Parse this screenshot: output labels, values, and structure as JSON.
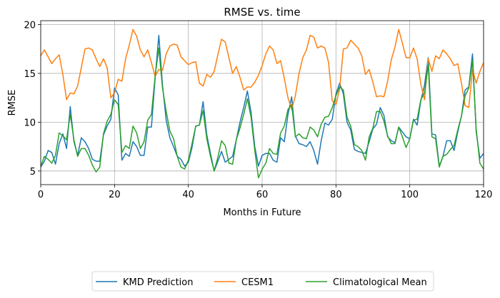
{
  "chart_data": {
    "type": "line",
    "title": "RMSE vs. time",
    "xlabel": "Months in Future",
    "ylabel": "RMSE",
    "xlim": [
      0,
      120
    ],
    "ylim": [
      3.6,
      20.4
    ],
    "xticks": [
      0,
      20,
      40,
      60,
      80,
      100,
      120
    ],
    "yticks": [
      5,
      10,
      15,
      20
    ],
    "grid": true,
    "legend_position": "bottom-center",
    "series": [
      {
        "name": "KMD Prediction",
        "color": "#1f77b4",
        "values": [
          5.4,
          6.0,
          7.1,
          6.9,
          5.7,
          7.8,
          8.8,
          7.3,
          11.6,
          8.0,
          6.6,
          8.4,
          8.0,
          7.3,
          6.2,
          6.0,
          6.0,
          8.7,
          9.6,
          10.3,
          13.5,
          12.8,
          6.1,
          6.8,
          6.5,
          8.0,
          7.5,
          6.6,
          6.6,
          9.5,
          9.5,
          14.5,
          18.9,
          13.8,
          10.2,
          8.4,
          7.5,
          6.5,
          6.2,
          5.5,
          5.9,
          7.4,
          9.6,
          9.7,
          12.1,
          8.7,
          6.8,
          5.0,
          6.0,
          7.0,
          5.9,
          6.2,
          6.5,
          8.2,
          10.0,
          11.5,
          13.2,
          11.0,
          7.5,
          5.5,
          6.6,
          6.8,
          6.8,
          6.1,
          5.9,
          8.4,
          8.0,
          10.8,
          12.6,
          8.6,
          7.8,
          7.7,
          7.5,
          8.0,
          7.1,
          5.7,
          8.1,
          9.9,
          9.7,
          10.3,
          12.9,
          14.0,
          12.9,
          10.0,
          9.2,
          7.2,
          7.0,
          6.9,
          6.8,
          8.0,
          9.3,
          9.8,
          11.5,
          10.7,
          8.5,
          8.1,
          7.9,
          9.5,
          9.0,
          8.5,
          8.3,
          10.3,
          9.7,
          12.2,
          13.8,
          16.6,
          8.8,
          8.7,
          5.5,
          6.5,
          8.1,
          8.1,
          7.1,
          9.0,
          10.6,
          13.3,
          13.6,
          17.0,
          9.0,
          6.3,
          6.8
        ]
      },
      {
        "name": "CESM1",
        "color": "#ff7f0e",
        "values": [
          16.8,
          17.4,
          16.7,
          16.0,
          16.5,
          16.9,
          14.9,
          12.3,
          13.0,
          12.9,
          13.7,
          15.6,
          17.5,
          17.6,
          17.4,
          16.5,
          15.7,
          16.5,
          15.6,
          12.5,
          13.0,
          14.4,
          14.2,
          16.5,
          17.9,
          19.5,
          18.8,
          17.4,
          16.7,
          17.4,
          16.1,
          14.7,
          15.4,
          15.3,
          17.0,
          17.8,
          18.0,
          17.9,
          16.7,
          16.3,
          15.9,
          16.1,
          16.2,
          14.0,
          13.7,
          14.9,
          14.6,
          15.2,
          16.9,
          18.5,
          18.2,
          16.6,
          15.0,
          15.7,
          14.6,
          13.3,
          13.6,
          13.6,
          14.1,
          14.8,
          15.8,
          17.0,
          17.8,
          17.4,
          16.0,
          16.3,
          14.5,
          12.5,
          11.3,
          12.7,
          15.0,
          16.6,
          17.4,
          18.9,
          18.7,
          17.6,
          17.8,
          17.6,
          16.1,
          12.2,
          11.8,
          13.4,
          17.5,
          17.6,
          18.4,
          18.0,
          17.6,
          16.8,
          14.9,
          15.4,
          14.1,
          12.6,
          12.7,
          12.6,
          14.2,
          16.4,
          17.7,
          19.5,
          18.1,
          16.6,
          16.6,
          17.6,
          16.5,
          13.9,
          12.3,
          16.5,
          15.2,
          16.8,
          16.5,
          17.4,
          17.0,
          16.5,
          15.8,
          16.0,
          14.0,
          11.7,
          11.5,
          15.4,
          14.0,
          15.2,
          16.1
        ]
      },
      {
        "name": "Climatological Mean",
        "color": "#2ca02c",
        "values": [
          5.5,
          6.5,
          6.2,
          5.8,
          6.6,
          8.9,
          8.6,
          8.2,
          10.8,
          8.2,
          6.5,
          7.3,
          7.3,
          6.6,
          5.6,
          4.9,
          5.4,
          8.8,
          10.1,
          10.8,
          12.3,
          11.8,
          6.9,
          7.6,
          7.3,
          9.6,
          8.9,
          7.3,
          8.0,
          10.2,
          10.8,
          14.7,
          17.6,
          13.5,
          11.1,
          9.1,
          8.3,
          6.5,
          5.4,
          5.2,
          6.1,
          7.8,
          9.6,
          9.7,
          11.2,
          8.3,
          6.5,
          5.0,
          6.4,
          8.1,
          7.6,
          5.8,
          5.7,
          8.2,
          9.4,
          10.8,
          12.4,
          10.5,
          7.1,
          4.3,
          5.2,
          5.8,
          7.3,
          6.8,
          6.7,
          8.9,
          9.6,
          11.3,
          11.8,
          8.5,
          8.8,
          8.4,
          8.3,
          9.5,
          9.2,
          8.5,
          9.8,
          10.5,
          10.6,
          11.5,
          12.7,
          13.6,
          13.3,
          10.5,
          9.6,
          7.7,
          7.5,
          7.1,
          6.1,
          8.5,
          9.4,
          11.1,
          11.1,
          10.1,
          8.6,
          7.8,
          7.8,
          9.5,
          8.5,
          7.4,
          8.3,
          10.2,
          10.3,
          12.3,
          13.0,
          15.9,
          8.5,
          8.3,
          5.4,
          6.5,
          6.7,
          7.2,
          7.6,
          9.2,
          10.6,
          12.7,
          13.5,
          16.3,
          9.3,
          5.8,
          5.2
        ]
      }
    ]
  }
}
